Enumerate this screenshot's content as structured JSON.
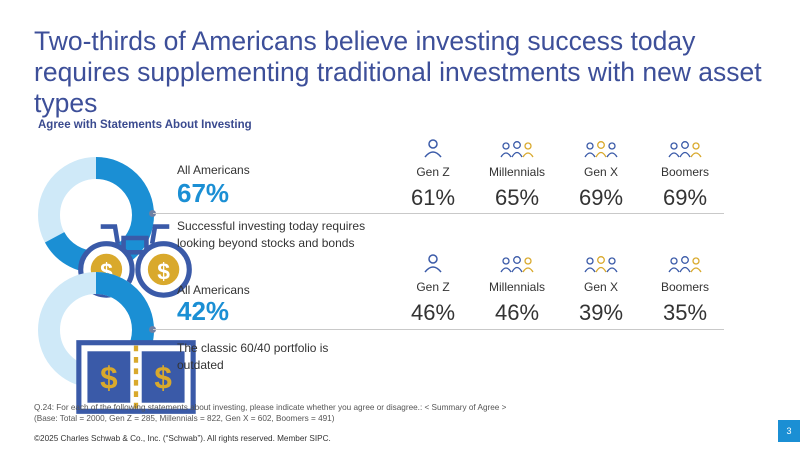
{
  "header": {
    "title": "Two-thirds of Americans believe investing success today requires supplementing traditional investments with new asset types",
    "subtitle": "Agree with Statements About Investing"
  },
  "chart_data": [
    {
      "type": "pie",
      "all_label": "All Americans",
      "all_value": 67,
      "all_display": "67%",
      "statement": "Successful investing today requires looking beyond stocks and bonds",
      "icon": "binoculars-icon",
      "categories": [
        "Gen Z",
        "Millennials",
        "Gen X",
        "Boomers"
      ],
      "values": [
        61,
        65,
        69,
        69
      ],
      "value_labels": [
        "61%",
        "65%",
        "69%",
        "69%"
      ]
    },
    {
      "type": "pie",
      "all_label": "All Americans",
      "all_value": 42,
      "all_display": "42%",
      "statement": "The classic 60/40 portfolio is outdated",
      "icon": "split-portfolio-icon",
      "categories": [
        "Gen Z",
        "Millennials",
        "Gen X",
        "Boomers"
      ],
      "values": [
        46,
        46,
        39,
        35
      ],
      "value_labels": [
        "46%",
        "46%",
        "39%",
        "35%"
      ]
    }
  ],
  "colors": {
    "title": "#3d4f99",
    "accent": "#1b8fd4",
    "donut_track": "#cfe9f8",
    "icon_blue": "#3a5aa8",
    "icon_gold": "#d9a92c"
  },
  "footer": {
    "question": "Q.24:  For each of the following statements about investing, please indicate whether you agree or disagree.:  < Summary of Agree >",
    "base": "(Base: Total = 2000, Gen Z = 285, Millennials = 822, Gen X = 602, Boomers = 491)",
    "copyright": "©2025 Charles Schwab & Co., Inc. (“Schwab”). All rights reserved. Member SIPC.",
    "page_number": "3"
  }
}
